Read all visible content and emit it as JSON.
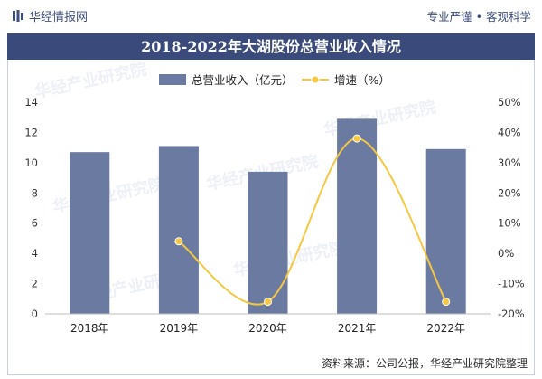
{
  "header": {
    "brand": "华经情报网",
    "tagline": "专业严谨 • 客观科学"
  },
  "chart_data": {
    "type": "bar",
    "title": "2018-2022年大湖股份总营业收入情况",
    "categories": [
      "2018年",
      "2019年",
      "2020年",
      "2021年",
      "2022年"
    ],
    "series": [
      {
        "name": "总营业收入（亿元）",
        "kind": "bar",
        "axis": "left",
        "color": "#6b7aa0",
        "values": [
          10.7,
          11.1,
          9.4,
          12.9,
          10.9
        ]
      },
      {
        "name": "增速（%）",
        "kind": "line",
        "axis": "right",
        "color": "#f5c842",
        "values": [
          null,
          4,
          -16,
          38,
          -16
        ]
      }
    ],
    "y_left": {
      "min": 0,
      "max": 14,
      "step": 2,
      "ticks": [
        "0",
        "2",
        "4",
        "6",
        "8",
        "10",
        "12",
        "14"
      ]
    },
    "y_right": {
      "min": -20,
      "max": 50,
      "step": 10,
      "ticks": [
        "-20%",
        "-10%",
        "0%",
        "10%",
        "20%",
        "30%",
        "40%",
        "50%"
      ]
    },
    "legend_position": "top-left",
    "grid": false
  },
  "watermark": "华经产业研究院",
  "footer": {
    "source": "资料来源：公司公报，华经产业研究院整理"
  }
}
